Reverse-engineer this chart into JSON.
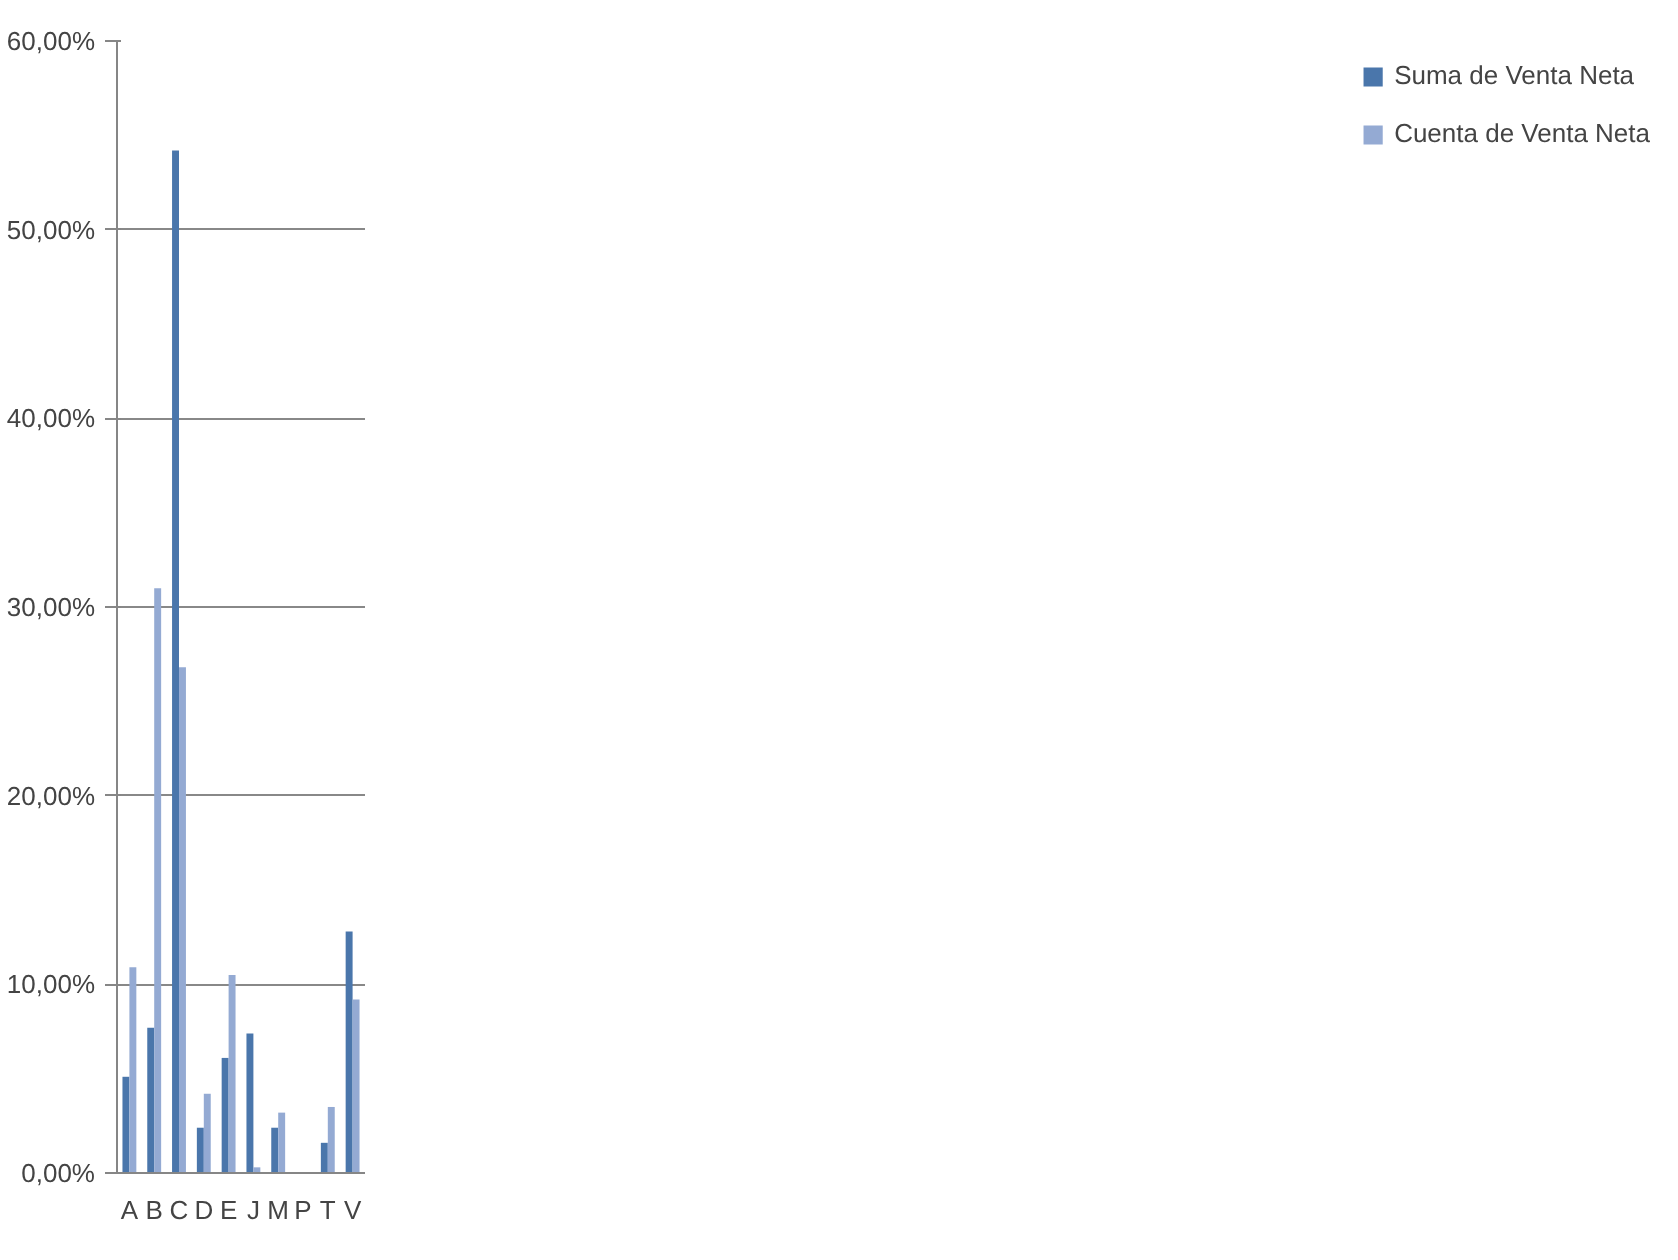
{
  "chart_data": {
    "type": "bar",
    "categories": [
      "A",
      "B",
      "C",
      "D",
      "E",
      "J",
      "M",
      "P",
      "T",
      "V"
    ],
    "series": [
      {
        "name": "Suma de Venta Neta",
        "color": "#4a76ab",
        "values": [
          5.1,
          7.7,
          54.2,
          2.4,
          6.1,
          7.4,
          2.4,
          0,
          1.6,
          12.8
        ]
      },
      {
        "name": "Cuenta de Venta Neta",
        "color": "#94aad3",
        "values": [
          10.9,
          31.0,
          26.8,
          4.2,
          10.5,
          0.3,
          3.2,
          0,
          3.5,
          9.2
        ]
      }
    ],
    "ylim": [
      0,
      60
    ],
    "yticks": [
      {
        "value": 0,
        "label": "0,00%"
      },
      {
        "value": 10,
        "label": "10,00%"
      },
      {
        "value": 20,
        "label": "20,00%"
      },
      {
        "value": 30,
        "label": "30,00%"
      },
      {
        "value": 40,
        "label": "40,00%"
      },
      {
        "value": 50,
        "label": "50,00%"
      },
      {
        "value": 60,
        "label": "60,00%"
      }
    ],
    "grid": "y",
    "legend": "right"
  }
}
